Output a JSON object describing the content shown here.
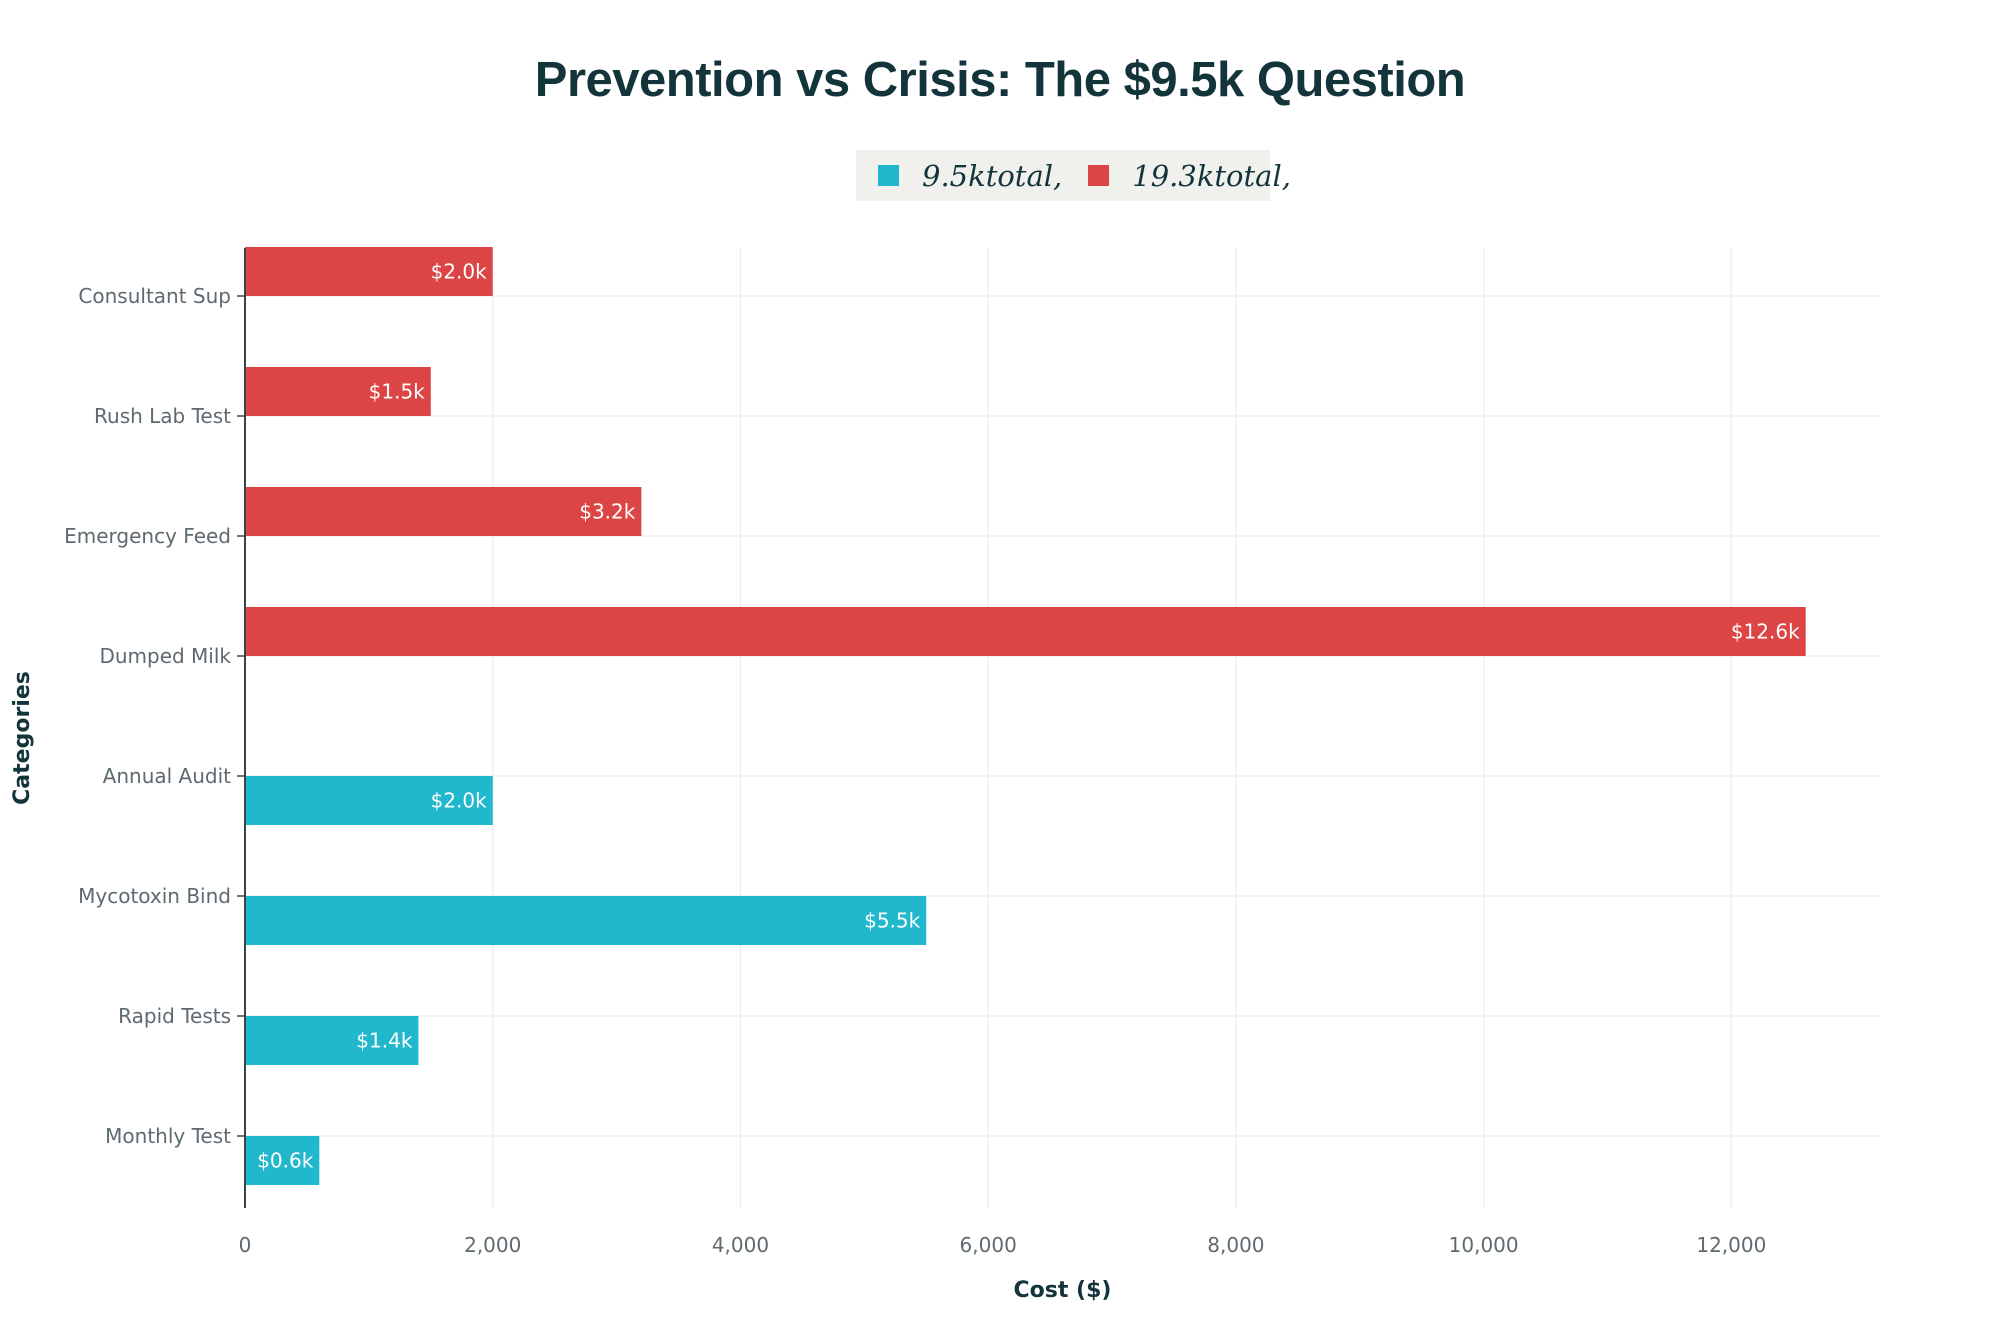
{
  "colors": {
    "prevention": "#21b8cd",
    "crisis": "#db4545",
    "title": "#13343b",
    "tick_text": "#5e6a70",
    "grid": "#eef0f0",
    "axis": "#3a4448",
    "bar_label": "#ffffff",
    "legend_bg": "#f0f1ec"
  },
  "chart_data": {
    "type": "bar",
    "orientation": "horizontal",
    "title": "Prevention vs Crisis: The $9.5k Question",
    "xlabel": "Cost ($)",
    "ylabel": "Categories",
    "xlim": [
      0,
      13200
    ],
    "xticks": [
      0,
      2000,
      4000,
      6000,
      8000,
      10000,
      12000
    ],
    "xtick_labels": [
      "0",
      "2,000",
      "4,000",
      "6,000",
      "8,000",
      "10,000",
      "12,000"
    ],
    "grid": true,
    "legend_position": "top-center",
    "categories": [
      "Monthly Test",
      "Rapid Tests",
      "Mycotoxin Bind",
      "Annual Audit",
      "Dumped Milk",
      "Emergency Feed",
      "Rush Lab Test",
      "Consultant Sup"
    ],
    "series": [
      {
        "name": "$9.5k total,",
        "legend_label": "9.5ktotal,",
        "color_key": "prevention",
        "values": [
          600,
          1400,
          5500,
          2000,
          null,
          null,
          null,
          null
        ],
        "labels": [
          "$0.6k",
          "$1.4k",
          "$5.5k",
          "$2.0k",
          null,
          null,
          null,
          null
        ]
      },
      {
        "name": "$19.3k total,",
        "legend_label": "19.3ktotal,",
        "color_key": "crisis",
        "values": [
          null,
          null,
          null,
          null,
          12600,
          3200,
          1500,
          2000
        ],
        "labels": [
          null,
          null,
          null,
          null,
          "$12.6k",
          "$3.2k",
          "$1.5k",
          "$2.0k"
        ]
      }
    ]
  }
}
